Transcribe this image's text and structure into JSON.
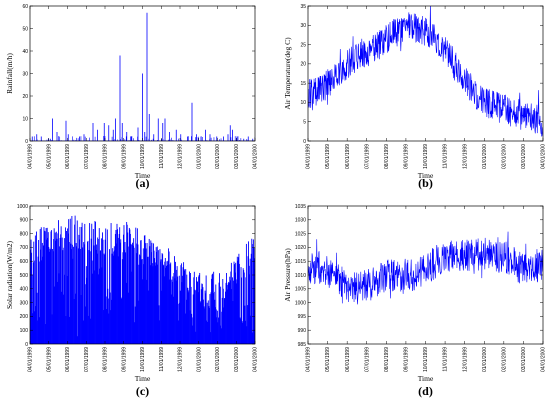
{
  "figure": {
    "time_ticks": [
      "04/01/1999",
      "05/01/1999",
      "06/01/1999",
      "07/01/1999",
      "08/01/1999",
      "09/01/1999",
      "10/01/1999",
      "11/01/1999",
      "12/01/1999",
      "01/01/2000",
      "02/01/2000",
      "03/01/2000",
      "04/01/2000"
    ],
    "line_color": "#0000ff"
  },
  "chart_data": [
    {
      "id": "a",
      "type": "line",
      "caption": "(a)",
      "xlabel": "Time",
      "ylabel": "Rainfall(m/h)",
      "ylim": [
        0,
        60
      ],
      "yticks": [
        0,
        10,
        20,
        30,
        40,
        50,
        60
      ],
      "x_range": [
        "04/01/1999",
        "04/01/2000"
      ],
      "series": [
        {
          "color": "#0000ff",
          "kind": "spikes",
          "baseline": 0,
          "points": [
            [
              0.01,
              2
            ],
            [
              0.03,
              3
            ],
            [
              0.05,
              2
            ],
            [
              0.09,
              1
            ],
            [
              0.1,
              10
            ],
            [
              0.12,
              4
            ],
            [
              0.16,
              9
            ],
            [
              0.17,
              3
            ],
            [
              0.22,
              2
            ],
            [
              0.24,
              3
            ],
            [
              0.28,
              8
            ],
            [
              0.3,
              5
            ],
            [
              0.33,
              8
            ],
            [
              0.35,
              7
            ],
            [
              0.37,
              5
            ],
            [
              0.38,
              10
            ],
            [
              0.4,
              38
            ],
            [
              0.41,
              8
            ],
            [
              0.43,
              4
            ],
            [
              0.45,
              2
            ],
            [
              0.48,
              6
            ],
            [
              0.5,
              30
            ],
            [
              0.51,
              4
            ],
            [
              0.52,
              57
            ],
            [
              0.53,
              12
            ],
            [
              0.55,
              3
            ],
            [
              0.57,
              10
            ],
            [
              0.59,
              8
            ],
            [
              0.6,
              10
            ],
            [
              0.62,
              4
            ],
            [
              0.65,
              5
            ],
            [
              0.67,
              3
            ],
            [
              0.7,
              2
            ],
            [
              0.72,
              17
            ],
            [
              0.74,
              3
            ],
            [
              0.76,
              2
            ],
            [
              0.78,
              5
            ],
            [
              0.8,
              3
            ],
            [
              0.83,
              2
            ],
            [
              0.86,
              2
            ],
            [
              0.88,
              3
            ],
            [
              0.89,
              7
            ],
            [
              0.9,
              5
            ],
            [
              0.92,
              2
            ],
            [
              0.95,
              1
            ],
            [
              0.97,
              2
            ],
            [
              0.99,
              1
            ]
          ]
        }
      ]
    },
    {
      "id": "b",
      "type": "line",
      "caption": "(b)",
      "xlabel": "Time",
      "ylabel": "Air Temperature(deg C)",
      "ylim": [
        0,
        35
      ],
      "yticks": [
        0,
        5,
        10,
        15,
        20,
        25,
        30,
        35
      ],
      "x_range": [
        "04/01/1999",
        "04/01/2000"
      ],
      "series": [
        {
          "color": "#0000ff",
          "kind": "noisy",
          "points": [
            [
              0.0,
              12
            ],
            [
              0.05,
              13
            ],
            [
              0.1,
              16
            ],
            [
              0.15,
              19
            ],
            [
              0.2,
              21
            ],
            [
              0.25,
              23
            ],
            [
              0.3,
              25
            ],
            [
              0.35,
              27
            ],
            [
              0.4,
              29
            ],
            [
              0.45,
              30
            ],
            [
              0.5,
              28
            ],
            [
              0.55,
              26
            ],
            [
              0.6,
              22
            ],
            [
              0.65,
              17
            ],
            [
              0.7,
              13
            ],
            [
              0.75,
              10
            ],
            [
              0.8,
              9
            ],
            [
              0.85,
              8
            ],
            [
              0.9,
              7
            ],
            [
              0.95,
              6
            ],
            [
              1.0,
              5
            ]
          ],
          "noise": 4
        }
      ]
    },
    {
      "id": "c",
      "type": "area",
      "caption": "(c)",
      "xlabel": "Time",
      "ylabel": "Solar radiation(W/m2)",
      "ylim": [
        0,
        1000
      ],
      "yticks": [
        0,
        100,
        200,
        300,
        400,
        500,
        600,
        700,
        800,
        900,
        1000
      ],
      "x_range": [
        "04/01/1999",
        "04/01/2000"
      ],
      "series": [
        {
          "color": "#0000ff",
          "kind": "envelope",
          "points": [
            [
              0.0,
              800
            ],
            [
              0.05,
              850
            ],
            [
              0.1,
              900
            ],
            [
              0.15,
              920
            ],
            [
              0.2,
              940
            ],
            [
              0.25,
              920
            ],
            [
              0.3,
              900
            ],
            [
              0.35,
              880
            ],
            [
              0.4,
              880
            ],
            [
              0.45,
              890
            ],
            [
              0.5,
              860
            ],
            [
              0.55,
              800
            ],
            [
              0.6,
              720
            ],
            [
              0.65,
              650
            ],
            [
              0.7,
              580
            ],
            [
              0.75,
              540
            ],
            [
              0.8,
              520
            ],
            [
              0.85,
              560
            ],
            [
              0.9,
              620
            ],
            [
              0.95,
              720
            ],
            [
              1.0,
              780
            ]
          ],
          "noise": 250
        }
      ]
    },
    {
      "id": "d",
      "type": "line",
      "caption": "(d)",
      "xlabel": "Time",
      "ylabel": "Air Pressure(hPa)",
      "ylim": [
        985,
        1035
      ],
      "yticks": [
        985,
        990,
        995,
        1000,
        1005,
        1010,
        1015,
        1020,
        1025,
        1030,
        1035
      ],
      "x_range": [
        "04/01/1999",
        "04/01/2000"
      ],
      "series": [
        {
          "color": "#0000ff",
          "kind": "noisy",
          "points": [
            [
              0.0,
              1012
            ],
            [
              0.05,
              1013
            ],
            [
              0.1,
              1010
            ],
            [
              0.15,
              1007
            ],
            [
              0.2,
              1005
            ],
            [
              0.25,
              1006
            ],
            [
              0.3,
              1008
            ],
            [
              0.35,
              1010
            ],
            [
              0.4,
              1009
            ],
            [
              0.45,
              1010
            ],
            [
              0.5,
              1012
            ],
            [
              0.55,
              1015
            ],
            [
              0.6,
              1016
            ],
            [
              0.65,
              1017
            ],
            [
              0.7,
              1017
            ],
            [
              0.75,
              1018
            ],
            [
              0.8,
              1017
            ],
            [
              0.85,
              1016
            ],
            [
              0.9,
              1013
            ],
            [
              0.95,
              1013
            ],
            [
              1.0,
              1014
            ]
          ],
          "noise": 6
        }
      ]
    }
  ]
}
